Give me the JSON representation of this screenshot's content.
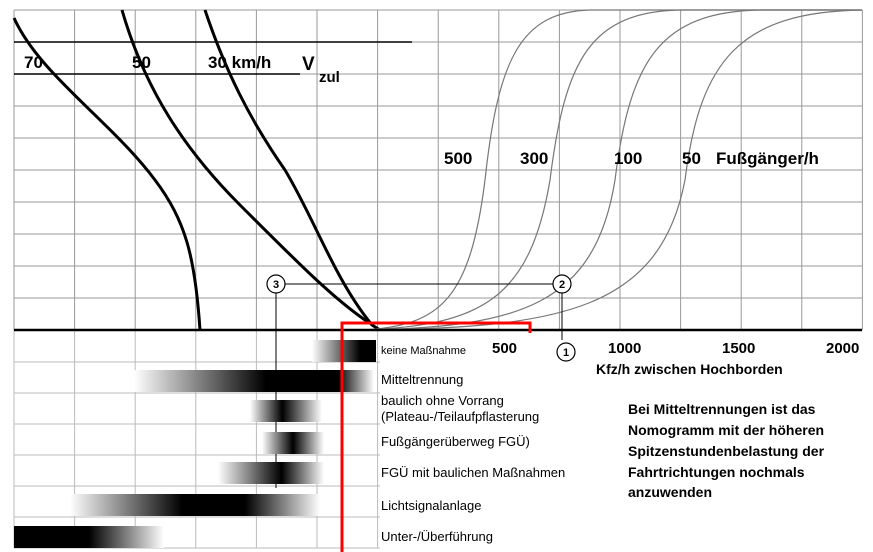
{
  "chart_data": {
    "type": "line",
    "speed_curves": {
      "unit_label": "km/h",
      "axis_symbol": "V",
      "axis_subscript": "zul",
      "series": [
        {
          "name": "70",
          "label": "70"
        },
        {
          "name": "50",
          "label": "50"
        },
        {
          "name": "30",
          "label": "30 km/h"
        }
      ]
    },
    "pedestrian_curves": {
      "unit_label": "Fußgänger/h",
      "series": [
        {
          "name": "500",
          "label": "500",
          "midpoint_kfz_h": 650
        },
        {
          "name": "300",
          "label": "300",
          "midpoint_kfz_h": 900
        },
        {
          "name": "100",
          "label": "100",
          "midpoint_kfz_h": 1150
        },
        {
          "name": "50",
          "label": "50",
          "midpoint_kfz_h": 1350
        }
      ]
    },
    "x_axis": {
      "label": "Kfz/h zwischen Hochborden",
      "ticks": [
        "500",
        "1000",
        "1500",
        "2000"
      ],
      "xlim": [
        0,
        2000
      ]
    },
    "markers": [
      "1",
      "2",
      "3"
    ],
    "measures": [
      {
        "label": "keine Maßnahme"
      },
      {
        "label": "Mitteltrennung"
      },
      {
        "label": "baulich ohne Vorrang"
      },
      {
        "label": "(Plateau-/Teilaufpflasterung"
      },
      {
        "label": "Fußgängerüberweg FGÜ)"
      },
      {
        "label": "FGÜ mit baulichen Maßnahmen"
      },
      {
        "label": "Lichtsignalanlage"
      },
      {
        "label": "Unter-/Überführung"
      }
    ],
    "note": [
      "Bei Mitteltrennungen ist das",
      "Nomogramm mit der höheren",
      "Spitzenstundenbelastung der",
      "Fahrtrichtungen nochmals",
      "anzuwenden"
    ],
    "grid": true,
    "highlight_color": "#ff0000"
  }
}
